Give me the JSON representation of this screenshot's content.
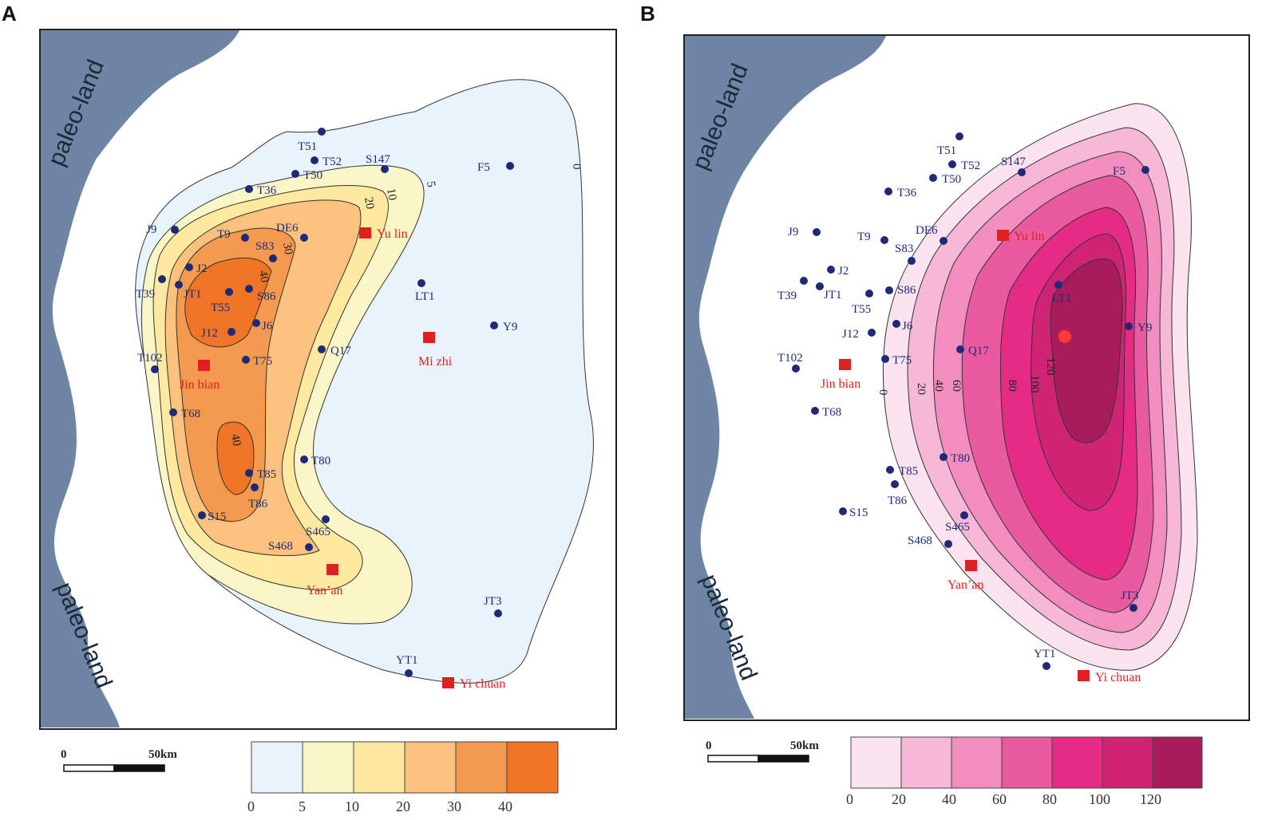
{
  "panels": [
    {
      "id": "A",
      "label": "A",
      "land_label_top": "paleo-land",
      "land_label_bottom": "paleo-land",
      "unit_scale": {
        "zero": "0",
        "distance": "50km"
      },
      "contour_labels": [
        "0",
        "5",
        "10",
        "20",
        "30",
        "40",
        "40"
      ],
      "legend": {
        "ticks": [
          "0",
          "5",
          "10",
          "20",
          "30",
          "40"
        ],
        "colors": [
          "#e8f3fb",
          "#fbf6c7",
          "#fde9a0",
          "#fbc27e",
          "#f49a4e",
          "#ef7426"
        ]
      },
      "wells": [
        {
          "name": "T51"
        },
        {
          "name": "T52"
        },
        {
          "name": "T50"
        },
        {
          "name": "S147"
        },
        {
          "name": "F5"
        },
        {
          "name": "T36"
        },
        {
          "name": "J9"
        },
        {
          "name": "T9"
        },
        {
          "name": "DE6"
        },
        {
          "name": "S83"
        },
        {
          "name": "J2"
        },
        {
          "name": "T39"
        },
        {
          "name": "JT1"
        },
        {
          "name": "T55"
        },
        {
          "name": "S86"
        },
        {
          "name": "LT1"
        },
        {
          "name": "Y9"
        },
        {
          "name": "J12"
        },
        {
          "name": "J6"
        },
        {
          "name": "Q17"
        },
        {
          "name": "T102"
        },
        {
          "name": "T75"
        },
        {
          "name": "T68"
        },
        {
          "name": "T80"
        },
        {
          "name": "T85"
        },
        {
          "name": "T86"
        },
        {
          "name": "S15"
        },
        {
          "name": "S465"
        },
        {
          "name": "S468"
        },
        {
          "name": "JT3"
        },
        {
          "name": "YT1"
        }
      ],
      "cities": [
        {
          "name": "Yu lin"
        },
        {
          "name": "Mi zhi"
        },
        {
          "name": "Jin bian"
        },
        {
          "name": "Yan’an"
        },
        {
          "name": "Yi chuan"
        }
      ]
    },
    {
      "id": "B",
      "label": "B",
      "land_label_top": "paleo-land",
      "land_label_bottom": "paleo-land",
      "unit_scale": {
        "zero": "0",
        "distance": "50km"
      },
      "contour_labels": [
        "0",
        "20",
        "40",
        "60",
        "80",
        "100",
        "120"
      ],
      "legend": {
        "ticks": [
          "0",
          "20",
          "40",
          "60",
          "80",
          "100",
          "120"
        ],
        "colors": [
          "#fbe3ef",
          "#f6b8d6",
          "#f18ebd",
          "#ea5a9e",
          "#e52b83",
          "#cf2474",
          "#a81c5c"
        ]
      },
      "wells": [
        {
          "name": "T51"
        },
        {
          "name": "T52"
        },
        {
          "name": "T50"
        },
        {
          "name": "S147"
        },
        {
          "name": "F5"
        },
        {
          "name": "T36"
        },
        {
          "name": "J9"
        },
        {
          "name": "T9"
        },
        {
          "name": "DE6"
        },
        {
          "name": "S83"
        },
        {
          "name": "J2"
        },
        {
          "name": "T39"
        },
        {
          "name": "JT1"
        },
        {
          "name": "T55"
        },
        {
          "name": "S86"
        },
        {
          "name": "LT1"
        },
        {
          "name": "Y9"
        },
        {
          "name": "J12"
        },
        {
          "name": "J6"
        },
        {
          "name": "Q17"
        },
        {
          "name": "T102"
        },
        {
          "name": "T75"
        },
        {
          "name": "T68"
        },
        {
          "name": "T80"
        },
        {
          "name": "T85"
        },
        {
          "name": "T86"
        },
        {
          "name": "S15"
        },
        {
          "name": "S465"
        },
        {
          "name": "S468"
        },
        {
          "name": "JT3"
        },
        {
          "name": "YT1"
        }
      ],
      "cities": [
        {
          "name": "Yu lin"
        },
        {
          "name": "Jin bian"
        },
        {
          "name": "Yan’an"
        },
        {
          "name": "Yi chuan"
        }
      ]
    }
  ],
  "colors": {
    "paleo_land": "#6e86a3",
    "well_dot": "#1e2a78",
    "city_marker": "#e02020",
    "frame": "#222222"
  }
}
